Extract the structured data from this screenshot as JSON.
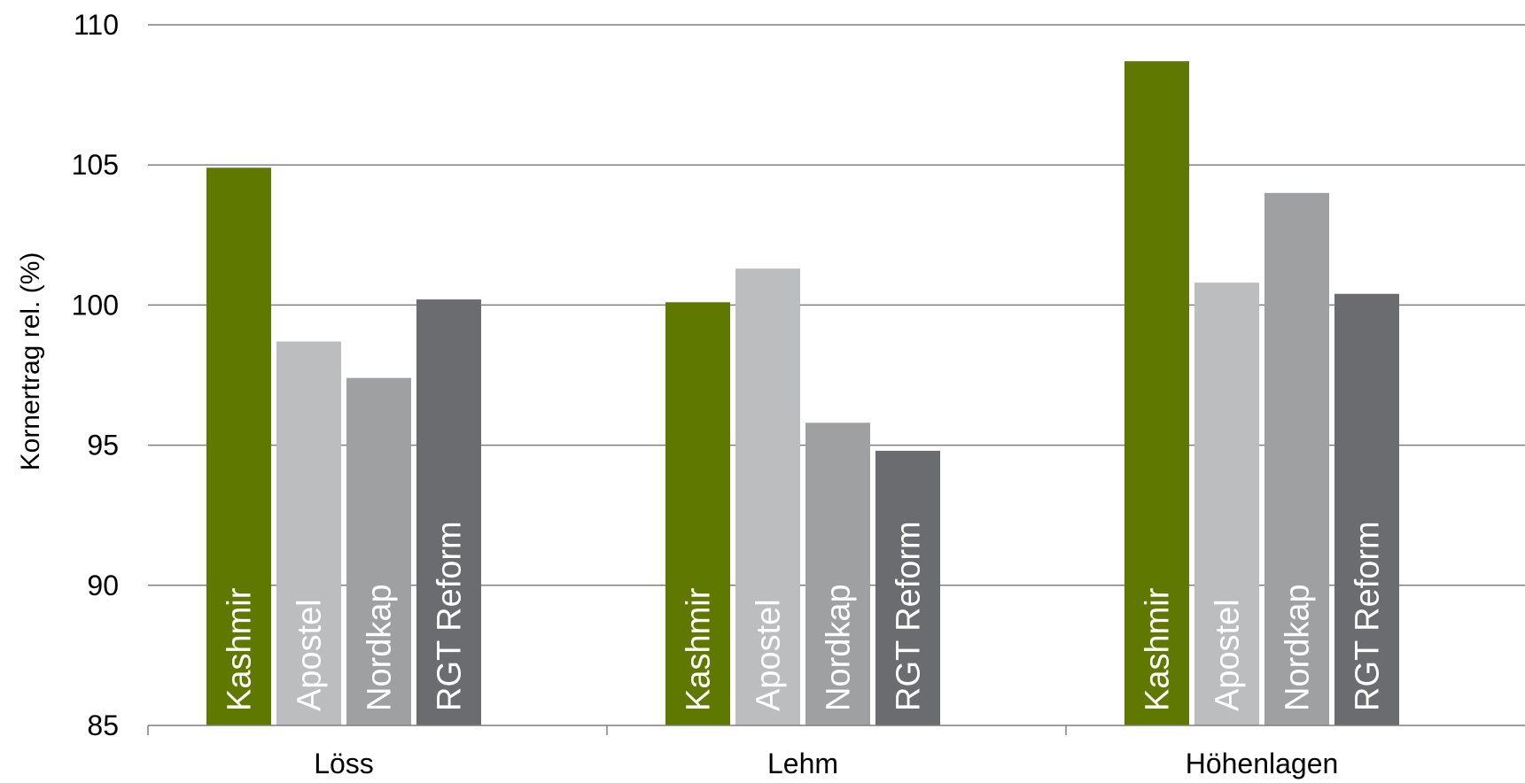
{
  "chart_data": {
    "type": "bar",
    "categories": [
      "Löss",
      "Lehm",
      "Höhenlagen"
    ],
    "series": [
      {
        "name": "Kashmir",
        "color": "#5f7800",
        "values": [
          104.9,
          100.1,
          108.7
        ]
      },
      {
        "name": "Apostel",
        "color": "#bcbdbf",
        "values": [
          98.7,
          101.3,
          100.8
        ]
      },
      {
        "name": "Nordkap",
        "color": "#9fa0a2",
        "values": [
          97.4,
          95.8,
          104.0
        ]
      },
      {
        "name": "RGT Reform",
        "color": "#6b6c6f",
        "values": [
          100.2,
          94.8,
          100.4
        ]
      }
    ],
    "ylabel": "Kornertrag rel. (%)",
    "ylim": [
      85,
      110
    ],
    "yticks": [
      "85",
      "90",
      "95",
      "100",
      "105",
      "110"
    ],
    "grid": true,
    "legend": "none (series names printed inside bars)"
  }
}
